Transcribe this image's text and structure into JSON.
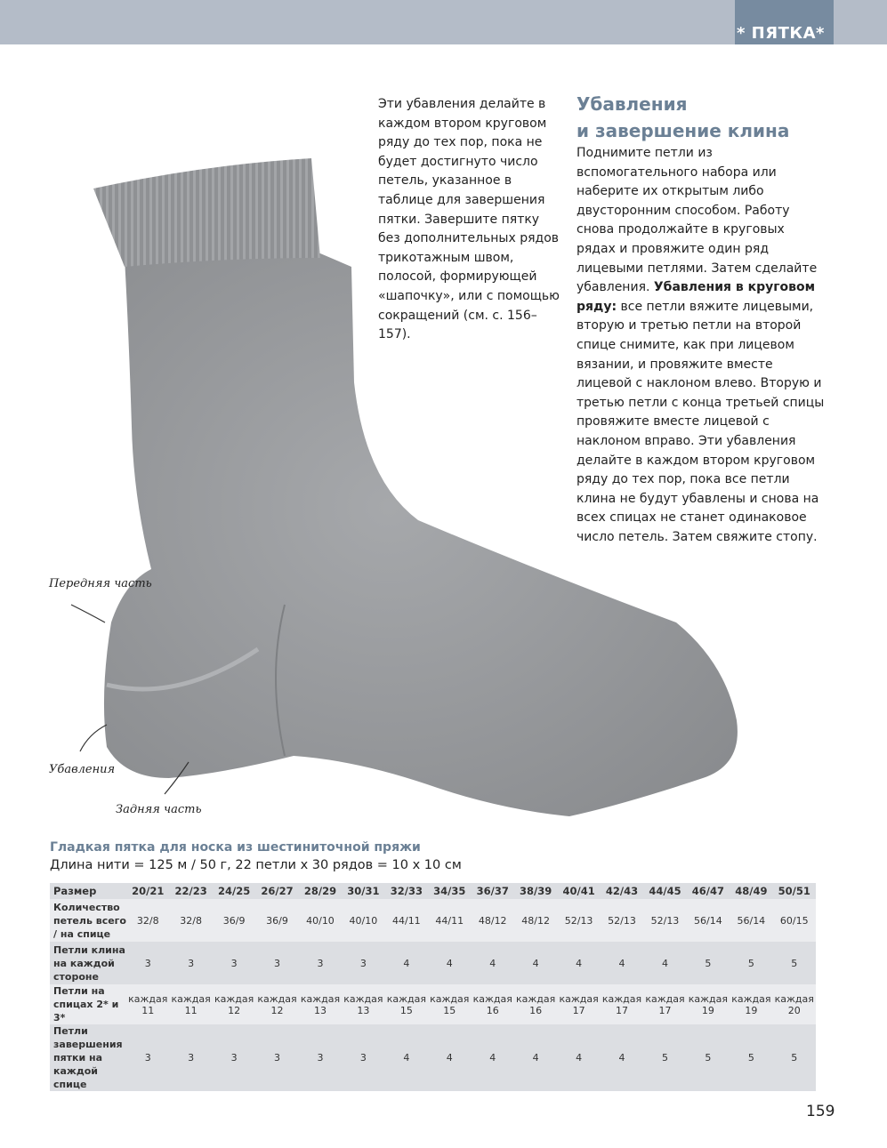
{
  "header": {
    "section_tab": "* ПЯТКА*",
    "accent_color": "#778ba0",
    "bar_color": "#b4bcc8"
  },
  "left_text": "Эти убавления делайте в каждом втором круговом ряду до тех пор, пока не будет достигнуто число петель, указанное в таблице для завершения пятки. Завершите пятку без дополнительных рядов трикотажным швом, полосой, формирующей «шапочку», или с помощью сокращений (см. с. 156–157).",
  "section": {
    "heading_line1": "Убавления",
    "heading_line2": "и завершение клина",
    "para1": "Поднимите петли из вспомогательного набора или наберите их открытым либо двусторонним способом. Работу снова продолжайте в круговых рядах и провяжите один ряд лицевыми петлями. Затем сделайте убавления.",
    "bold_lead": "Убавления в круговом ряду:",
    "para2": " все петли вяжите лицевыми, вторую и третью петли на второй спице снимите, как при лицевом вязании, и провяжите вместе лицевой с наклоном влево. Вторую и третью петли с конца третьей спицы провяжите вместе лицевой с наклоном вправо. Эти убавления делайте в каждом втором круговом ряду до тех пор, пока все петли клина не будут убавлены и снова на всех спицах не станет одинаковое число петель. Затем свяжите стопу."
  },
  "photo_labels": {
    "front": "Передняя часть",
    "decreases": "Убавления",
    "back": "Задняя часть"
  },
  "table": {
    "title": "Гладкая пятка для носка из шестиниточной пряжи",
    "subtitle": "Длина нити = 125 м / 50 г, 22 петли x 30 рядов = 10  x 10 см",
    "rows": [
      {
        "label": "Размер",
        "values": [
          "20/21",
          "22/23",
          "24/25",
          "26/27",
          "28/29",
          "30/31",
          "32/33",
          "34/35",
          "36/37",
          "38/39",
          "40/41",
          "42/43",
          "44/45",
          "46/47",
          "48/49",
          "50/51"
        ]
      },
      {
        "label": "Количество петель всего / на спице",
        "values": [
          "32/8",
          "32/8",
          "36/9",
          "36/9",
          "40/10",
          "40/10",
          "44/11",
          "44/11",
          "48/12",
          "48/12",
          "52/13",
          "52/13",
          "52/13",
          "56/14",
          "56/14",
          "60/15"
        ]
      },
      {
        "label": "Петли клина на каждой стороне",
        "values": [
          "3",
          "3",
          "3",
          "3",
          "3",
          "3",
          "4",
          "4",
          "4",
          "4",
          "4",
          "4",
          "4",
          "5",
          "5",
          "5"
        ]
      },
      {
        "label": "Петли на спицах 2* и 3*",
        "values": [
          "каждая 11",
          "каждая 11",
          "каждая 12",
          "каждая 12",
          "каждая 13",
          "каждая 13",
          "каждая 15",
          "каждая 15",
          "каждая 16",
          "каждая 16",
          "каждая 17",
          "каждая 17",
          "каждая 17",
          "каждая 19",
          "каждая 19",
          "каждая 20"
        ]
      },
      {
        "label": "Петли завершения пятки на каждой спице",
        "values": [
          "3",
          "3",
          "3",
          "3",
          "3",
          "3",
          "4",
          "4",
          "4",
          "4",
          "4",
          "4",
          "5",
          "5",
          "5",
          "5"
        ]
      }
    ]
  },
  "page_number": "159"
}
